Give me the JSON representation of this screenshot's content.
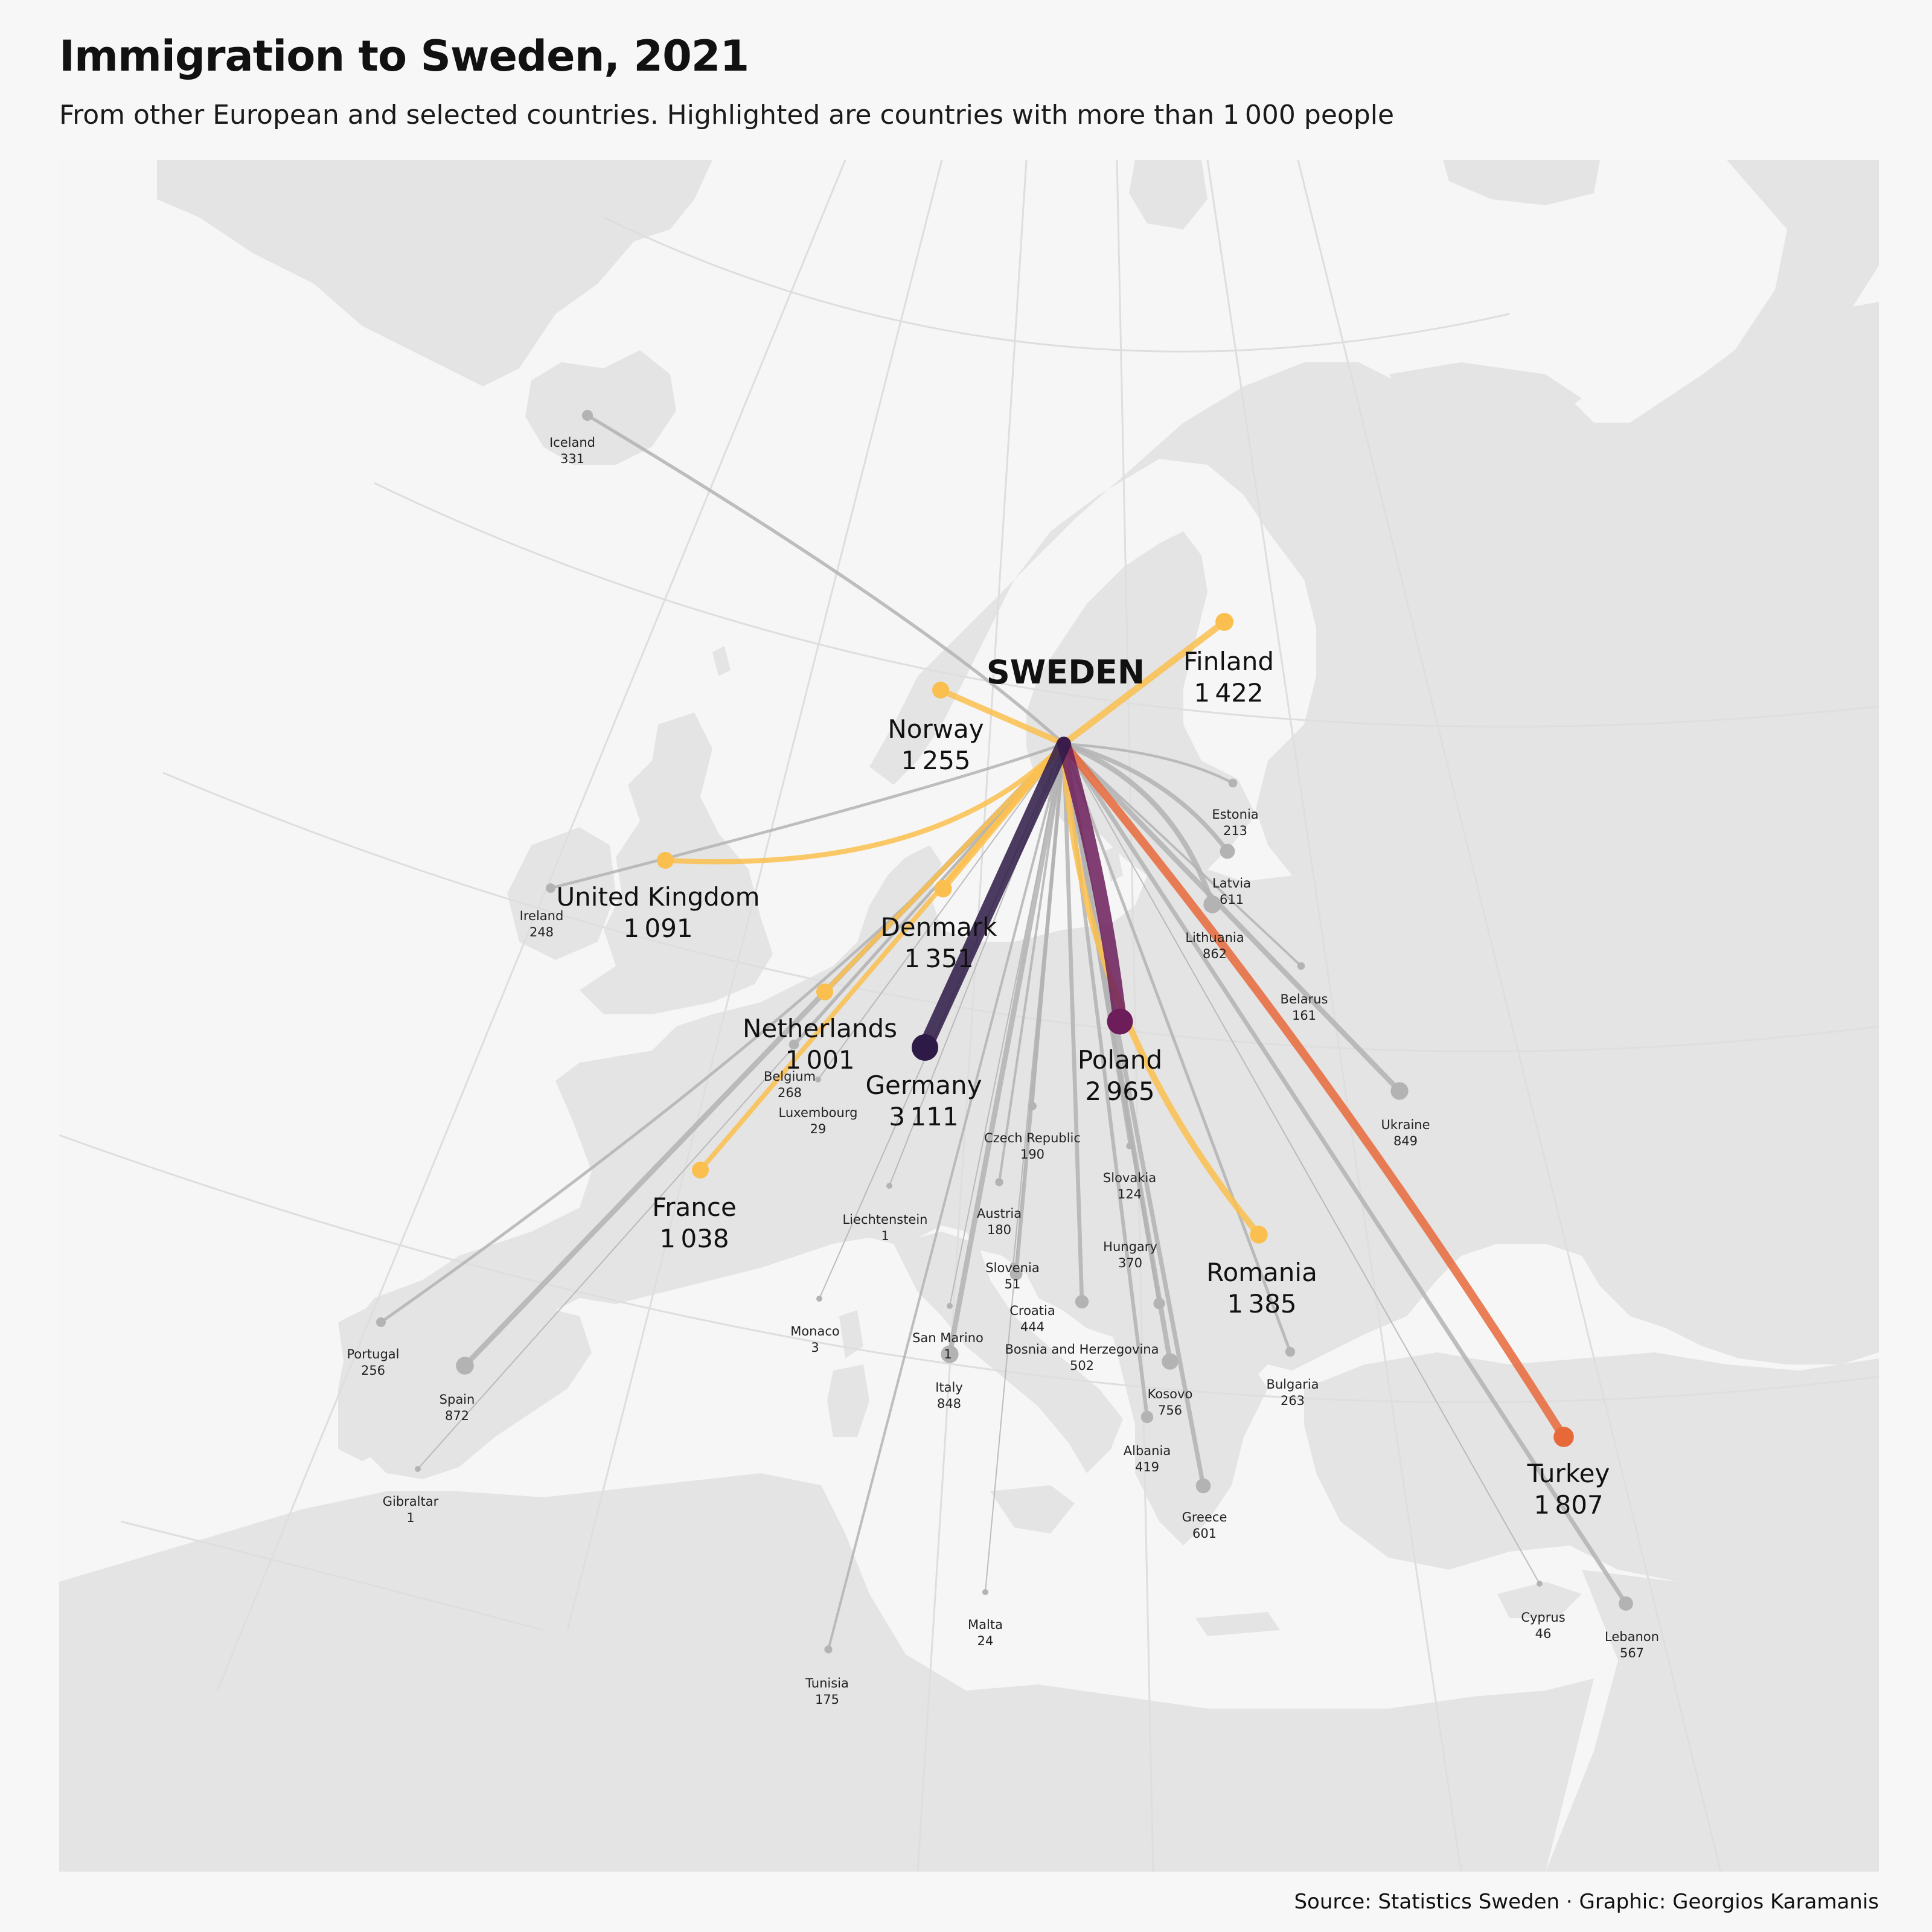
{
  "title": "Immigration to Sweden, 2021",
  "subtitle": "From other European and selected countries. Highlighted are countries with more than 1 000 people",
  "caption": "Source: Statistics Sweden · Graphic: Georgios Karamanis",
  "destination": "SWEDEN",
  "colors": {
    "background": "#f7f7f7",
    "land": "#e4e4e4",
    "sea": "#f6f6f6",
    "graticule": "#e0e0e0",
    "minor_flow": "#b3b3b3",
    "germany": "#2d1a47",
    "poland": "#6c1d5a",
    "turkey": "#e7693a",
    "high_flow": "#fbbf4f"
  },
  "countries": [
    {
      "name": "Germany",
      "value": "3 111",
      "count": 3111,
      "highlight": true,
      "color": "#2d1a47"
    },
    {
      "name": "Poland",
      "value": "2 965",
      "count": 2965,
      "highlight": true,
      "color": "#6c1d5a"
    },
    {
      "name": "Turkey",
      "value": "1 807",
      "count": 1807,
      "highlight": true,
      "color": "#e7693a"
    },
    {
      "name": "Finland",
      "value": "1 422",
      "count": 1422,
      "highlight": true,
      "color": "#fbbf4f"
    },
    {
      "name": "Romania",
      "value": "1 385",
      "count": 1385,
      "highlight": true,
      "color": "#fbbf4f"
    },
    {
      "name": "Denmark",
      "value": "1 351",
      "count": 1351,
      "highlight": true,
      "color": "#fbbf4f"
    },
    {
      "name": "Norway",
      "value": "1 255",
      "count": 1255,
      "highlight": true,
      "color": "#fbbf4f"
    },
    {
      "name": "United Kingdom",
      "value": "1 091",
      "count": 1091,
      "highlight": true,
      "color": "#fbbf4f"
    },
    {
      "name": "France",
      "value": "1 038",
      "count": 1038,
      "highlight": true,
      "color": "#fbbf4f"
    },
    {
      "name": "Netherlands",
      "value": "1 001",
      "count": 1001,
      "highlight": true,
      "color": "#fbbf4f"
    },
    {
      "name": "Spain",
      "value": "872",
      "count": 872,
      "highlight": false
    },
    {
      "name": "Lithuania",
      "value": "862",
      "count": 862,
      "highlight": false
    },
    {
      "name": "Ukraine",
      "value": "849",
      "count": 849,
      "highlight": false
    },
    {
      "name": "Italy",
      "value": "848",
      "count": 848,
      "highlight": false
    },
    {
      "name": "Kosovo",
      "value": "756",
      "count": 756,
      "highlight": false
    },
    {
      "name": "Latvia",
      "value": "611",
      "count": 611,
      "highlight": false
    },
    {
      "name": "Greece",
      "value": "601",
      "count": 601,
      "highlight": false
    },
    {
      "name": "Lebanon",
      "value": "567",
      "count": 567,
      "highlight": false
    },
    {
      "name": "Bosnia and Herzegovina",
      "value": "502",
      "count": 502,
      "highlight": false
    },
    {
      "name": "Croatia",
      "value": "444",
      "count": 444,
      "highlight": false
    },
    {
      "name": "Albania",
      "value": "419",
      "count": 419,
      "highlight": false
    },
    {
      "name": "Hungary",
      "value": "370",
      "count": 370,
      "highlight": false
    },
    {
      "name": "Iceland",
      "value": "331",
      "count": 331,
      "highlight": false
    },
    {
      "name": "Belgium",
      "value": "268",
      "count": 268,
      "highlight": false
    },
    {
      "name": "Bulgaria",
      "value": "263",
      "count": 263,
      "highlight": false
    },
    {
      "name": "Portugal",
      "value": "256",
      "count": 256,
      "highlight": false
    },
    {
      "name": "Ireland",
      "value": "248",
      "count": 248,
      "highlight": false
    },
    {
      "name": "Estonia",
      "value": "213",
      "count": 213,
      "highlight": false
    },
    {
      "name": "Czech Republic",
      "value": "190",
      "count": 190,
      "highlight": false
    },
    {
      "name": "Austria",
      "value": "180",
      "count": 180,
      "highlight": false
    },
    {
      "name": "Tunisia",
      "value": "175",
      "count": 175,
      "highlight": false
    },
    {
      "name": "Belarus",
      "value": "161",
      "count": 161,
      "highlight": false
    },
    {
      "name": "Slovakia",
      "value": "124",
      "count": 124,
      "highlight": false
    },
    {
      "name": "Slovenia",
      "value": "51",
      "count": 51,
      "highlight": false
    },
    {
      "name": "Cyprus",
      "value": "46",
      "count": 46,
      "highlight": false
    },
    {
      "name": "Luxembourg",
      "value": "29",
      "count": 29,
      "highlight": false
    },
    {
      "name": "Malta",
      "value": "24",
      "count": 24,
      "highlight": false
    },
    {
      "name": "Monaco",
      "value": "3",
      "count": 3,
      "highlight": false
    },
    {
      "name": "Liechtenstein",
      "value": "1",
      "count": 1,
      "highlight": false
    },
    {
      "name": "San Marino",
      "value": "1",
      "count": 1,
      "highlight": false
    },
    {
      "name": "Gibraltar",
      "value": "1",
      "count": 1,
      "highlight": false
    }
  ]
}
